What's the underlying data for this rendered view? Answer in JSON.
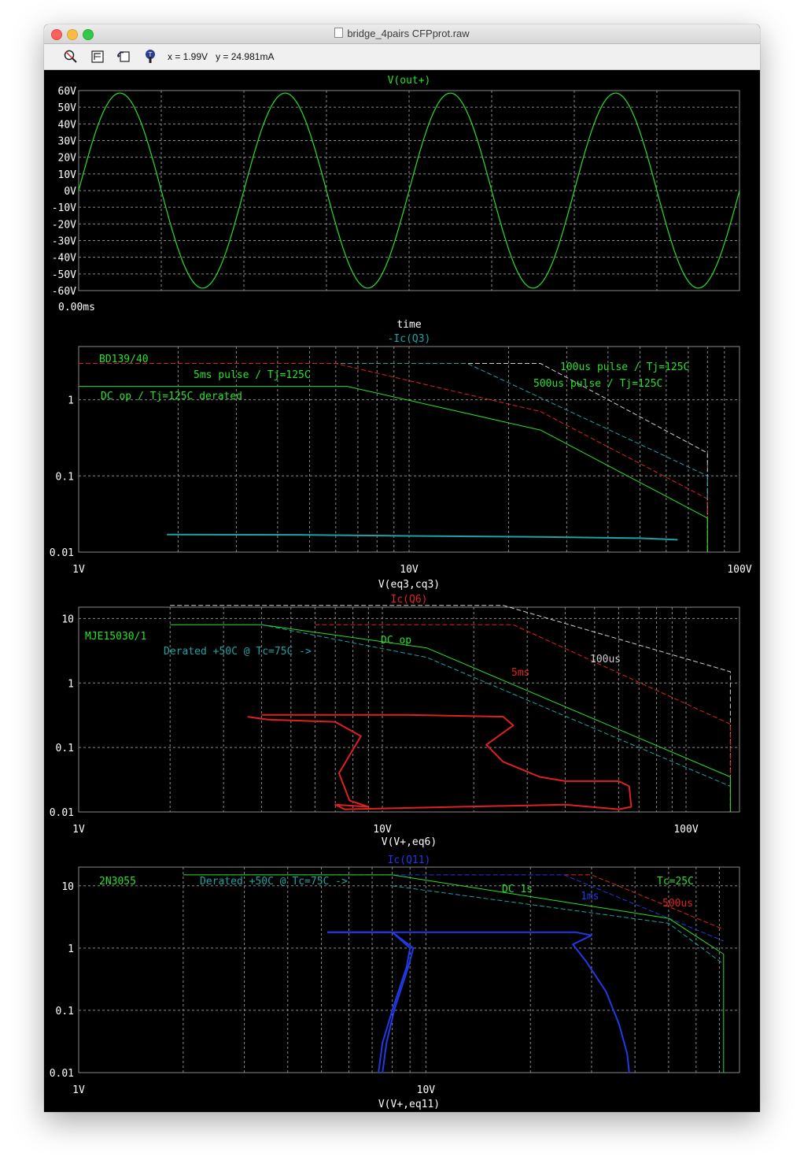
{
  "window": {
    "title": "bridge_4pairs CFPprot.raw",
    "cursor_x": "x = 1.99V",
    "cursor_y": "y = 24.981mA",
    "toolbar_icons": [
      "zoom-icon",
      "autorange-icon",
      "undo-zoom-icon",
      "probe-icon"
    ]
  },
  "colors": {
    "background": "#000000",
    "grid": "#8a8a8a",
    "green": "#28e028",
    "cyan": "#19a3a3",
    "red": "#e02020",
    "blue": "#1f3ae6",
    "white_dash": "#cfcfcf"
  },
  "chart_data": [
    {
      "type": "line",
      "title": "V(out+)",
      "xlabel": "time",
      "x_tick_labels": [
        "0.00ms"
      ],
      "ylim": [
        -60,
        60
      ],
      "y_tick_labels": [
        "60V",
        "50V",
        "40V",
        "30V",
        "20V",
        "10V",
        "0V",
        "-10V",
        "-20V",
        "-30V",
        "-40V",
        "-50V",
        "-60V"
      ],
      "grid": true,
      "series": [
        {
          "name": "V(out+)",
          "color": "green",
          "amplitude": 58.5,
          "cycles": 4,
          "x": [
            0,
            1
          ],
          "phase": "sine starting at 0V"
        }
      ]
    },
    {
      "type": "line",
      "title": "-Ic(Q3)",
      "xlabel": "V(eq3,cq3)",
      "x_scale": "log",
      "xlim": [
        1,
        100
      ],
      "x_tick_labels": [
        "1V",
        "10V",
        "100V"
      ],
      "y_scale": "log",
      "ylim": [
        0.01,
        5
      ],
      "y_tick_labels": [
        "1",
        "0.1",
        "0.01"
      ],
      "grid": true,
      "annotations": [
        {
          "text": "BD139/40",
          "color": "green"
        },
        {
          "text": "5ms pulse / Tj=125C",
          "color": "green"
        },
        {
          "text": "DC op / Tj=125C derated",
          "color": "green"
        },
        {
          "text": "100us pulse / Tj=125C",
          "color": "green"
        },
        {
          "text": "500us pulse / Tj=125C",
          "color": "green"
        }
      ],
      "series": [
        {
          "color": "white_dash",
          "dashed": true,
          "x": [
            1,
            25,
            80,
            80
          ],
          "y": [
            3,
            3,
            0.2,
            0.01
          ]
        },
        {
          "color": "cyan",
          "dashed": true,
          "x": [
            1,
            15,
            80,
            80
          ],
          "y": [
            3,
            3,
            0.1,
            0.01
          ]
        },
        {
          "color": "red",
          "dashed": true,
          "x": [
            1,
            6,
            25,
            80,
            80
          ],
          "y": [
            3,
            3,
            0.7,
            0.05,
            0.01
          ]
        },
        {
          "color": "green",
          "dashed": false,
          "x": [
            1,
            6.5,
            25,
            80,
            80
          ],
          "y": [
            1.5,
            1.5,
            0.4,
            0.028,
            0.01
          ]
        },
        {
          "name": "-Ic(Q3)",
          "color": "cyan",
          "dashed": false,
          "x": [
            1.85,
            5,
            10,
            25,
            50,
            65
          ],
          "y": [
            0.017,
            0.0168,
            0.0163,
            0.0158,
            0.0152,
            0.0145
          ]
        }
      ]
    },
    {
      "type": "line",
      "title": "Ic(Q6)",
      "xlabel": "V(V+,eq6)",
      "x_scale": "log",
      "xlim": [
        1,
        150
      ],
      "x_tick_labels": [
        "1V",
        "10V",
        "100V"
      ],
      "y_scale": "log",
      "ylim": [
        0.01,
        15
      ],
      "y_tick_labels": [
        "10",
        "1",
        "0.1",
        "0.01"
      ],
      "grid": true,
      "annotations": [
        {
          "text": "MJE15030/1",
          "color": "green"
        },
        {
          "text": "Derated +50C @ Tc=75C ->",
          "color": "cyan"
        },
        {
          "text": "DC op",
          "color": "green"
        },
        {
          "text": "5ms",
          "color": "red"
        },
        {
          "text": "100us",
          "color": "white_dash"
        }
      ],
      "series": [
        {
          "color": "white_dash",
          "dashed": true,
          "x": [
            2,
            25,
            140,
            140
          ],
          "y": [
            16,
            16,
            1.5,
            0.01
          ]
        },
        {
          "color": "red",
          "dashed": true,
          "x": [
            6,
            27,
            140,
            140
          ],
          "y": [
            8,
            8,
            0.23,
            0.01
          ]
        },
        {
          "color": "green",
          "dashed": false,
          "x": [
            2,
            4,
            14,
            140,
            140
          ],
          "y": [
            8,
            8,
            3.5,
            0.035,
            0.01
          ]
        },
        {
          "color": "cyan",
          "dashed": true,
          "x": [
            4,
            14,
            140
          ],
          "y": [
            8,
            2.5,
            0.025
          ]
        },
        {
          "name": "Ic(Q6)",
          "color": "red",
          "dashed": false,
          "x": [
            3.6,
            4.2,
            7,
            8.5,
            7.2,
            7.8,
            9,
            7,
            7.5,
            40,
            60,
            66,
            65,
            60,
            40,
            33,
            25,
            22,
            27,
            25,
            12,
            4
          ],
          "y": [
            0.3,
            0.27,
            0.25,
            0.15,
            0.04,
            0.015,
            0.012,
            0.013,
            0.011,
            0.013,
            0.011,
            0.012,
            0.025,
            0.03,
            0.03,
            0.035,
            0.06,
            0.11,
            0.22,
            0.3,
            0.32,
            0.32
          ]
        }
      ]
    },
    {
      "type": "line",
      "title": "Ic(Q11)",
      "xlabel": "V(V+,eq11)",
      "x_scale": "log",
      "xlim": [
        1,
        80
      ],
      "x_tick_labels": [
        "1V",
        "10V"
      ],
      "y_scale": "log",
      "ylim": [
        0.01,
        20
      ],
      "y_tick_labels": [
        "10",
        "1",
        "0.1",
        "0.01"
      ],
      "grid": true,
      "annotations": [
        {
          "text": "2N3055",
          "color": "green"
        },
        {
          "text": "Derated +50C @ Tc=75C ->",
          "color": "cyan"
        },
        {
          "text": "DC 1s",
          "color": "green"
        },
        {
          "text": "1ms",
          "color": "blue"
        },
        {
          "text": "Tc=25C",
          "color": "green"
        },
        {
          "text": "500us",
          "color": "red"
        }
      ],
      "series": [
        {
          "color": "red",
          "dashed": true,
          "x": [
            25,
            30,
            72
          ],
          "y": [
            15,
            15,
            2
          ]
        },
        {
          "color": "blue",
          "dashed": true,
          "x": [
            2.5,
            25,
            72
          ],
          "y": [
            15,
            15,
            1.3
          ]
        },
        {
          "color": "green",
          "dashed": false,
          "x": [
            2,
            8,
            50,
            72,
            72
          ],
          "y": [
            15,
            15,
            3,
            0.8,
            0.01
          ]
        },
        {
          "color": "cyan",
          "dashed": true,
          "x": [
            8,
            50,
            72
          ],
          "y": [
            10,
            2.5,
            0.55
          ]
        },
        {
          "name": "Ic(Q11)",
          "color": "blue",
          "dashed": false,
          "x": [
            5.2,
            8,
            9,
            8.8,
            8,
            7.5,
            7.3
          ],
          "y": [
            1.8,
            1.8,
            1.0,
            0.5,
            0.1,
            0.03,
            0.01
          ]
        },
        {
          "name": "Ic(Q11)",
          "color": "blue",
          "dashed": false,
          "x": [
            5.2,
            8,
            9.2,
            8.9,
            8.1,
            7.7,
            7.5
          ],
          "y": [
            1.8,
            1.8,
            1.0,
            0.5,
            0.1,
            0.03,
            0.01
          ]
        },
        {
          "name": "Ic(Q11)",
          "color": "blue",
          "dashed": false,
          "x": [
            8,
            27,
            30,
            26.5,
            29,
            33,
            36,
            38,
            38.5
          ],
          "y": [
            1.8,
            1.8,
            1.6,
            1.15,
            0.6,
            0.2,
            0.06,
            0.02,
            0.01
          ]
        }
      ]
    }
  ]
}
